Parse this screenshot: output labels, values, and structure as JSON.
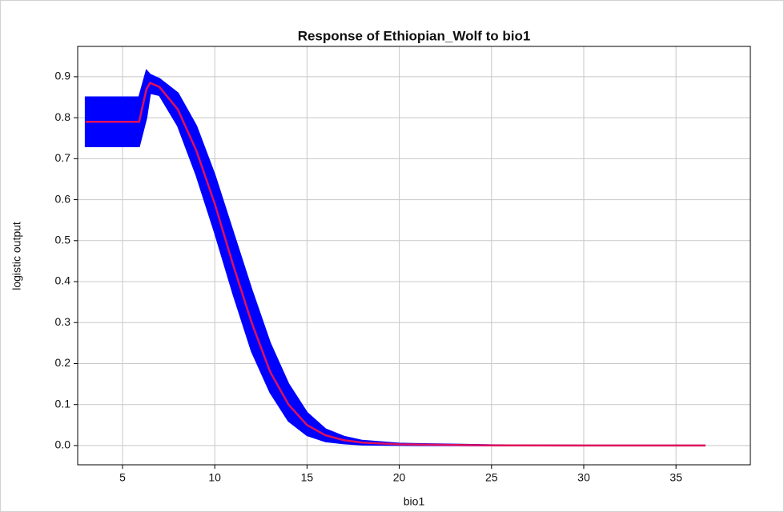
{
  "chart_data": {
    "type": "line",
    "title": "Response of Ethiopian_Wolf to bio1",
    "x_label": "bio1",
    "y_label": "logistic output",
    "x": [
      3,
      5.9,
      6.3,
      6.5,
      7,
      8,
      9,
      10,
      11,
      12,
      13,
      14,
      15,
      16,
      17,
      18,
      20,
      25,
      30,
      36.6
    ],
    "series": [
      {
        "color": "#e0105a",
        "values": [
          0.79,
          0.79,
          0.87,
          0.885,
          0.875,
          0.82,
          0.72,
          0.59,
          0.44,
          0.3,
          0.18,
          0.1,
          0.05,
          0.025,
          0.013,
          0.007,
          0.003,
          0.0005,
          0,
          0
        ]
      }
    ],
    "band": {
      "color": "#0000ff",
      "upper": [
        0.85,
        0.85,
        0.915,
        0.905,
        0.895,
        0.86,
        0.78,
        0.66,
        0.52,
        0.38,
        0.25,
        0.15,
        0.08,
        0.04,
        0.022,
        0.012,
        0.005,
        0.001,
        0,
        0
      ],
      "lower": [
        0.73,
        0.73,
        0.8,
        0.86,
        0.855,
        0.78,
        0.66,
        0.52,
        0.37,
        0.23,
        0.13,
        0.06,
        0.025,
        0.01,
        0.005,
        0.002,
        0.001,
        0,
        0,
        0
      ]
    },
    "xlim": [
      2.57,
      39.03
    ],
    "ylim": [
      -0.047,
      0.974
    ],
    "xticks": [
      5,
      10,
      15,
      20,
      25,
      30,
      35
    ],
    "yticks": [
      {
        "value": 0,
        "label": "0.0"
      },
      0.1,
      0.2,
      0.3,
      0.4,
      0.5,
      0.6,
      0.7,
      0.8,
      0.9
    ],
    "grid": true
  }
}
